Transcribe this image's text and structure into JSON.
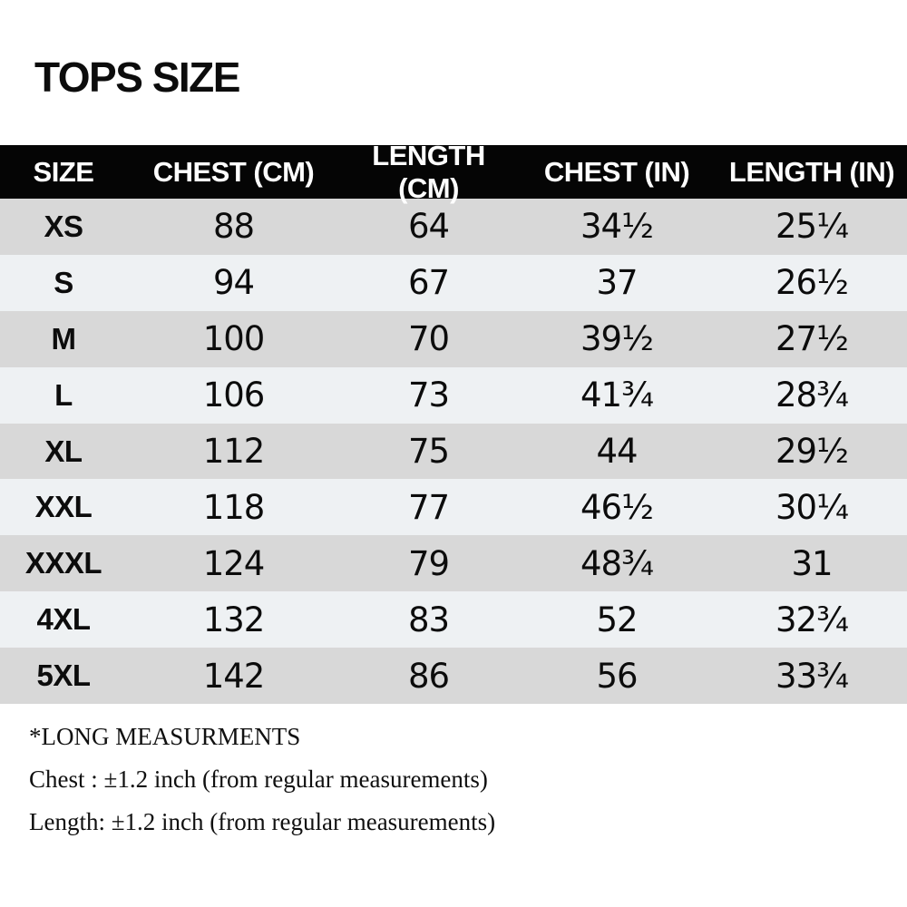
{
  "chart_data": {
    "type": "table",
    "title": "TOPS SIZE",
    "columns": [
      "SIZE",
      "CHEST (CM)",
      "LENGTH (CM)",
      "CHEST (IN)",
      "LENGTH (IN)"
    ],
    "rows": [
      [
        "XS",
        "88",
        "64",
        "34½",
        "25¼"
      ],
      [
        "S",
        "94",
        "67",
        "37",
        "26½"
      ],
      [
        "M",
        "100",
        "70",
        "39½",
        "27½"
      ],
      [
        "L",
        "106",
        "73",
        "41¾",
        "28¾"
      ],
      [
        "XL",
        "112",
        "75",
        "44",
        "29½"
      ],
      [
        "XXL",
        "118",
        "77",
        "46½",
        "30¼"
      ],
      [
        "XXXL",
        "124",
        "79",
        "48¾",
        "31"
      ],
      [
        "4XL",
        "132",
        "83",
        "52",
        "32¾"
      ],
      [
        "5XL",
        "142",
        "86",
        "56",
        "33¾"
      ]
    ],
    "notes": [
      "*LONG MEASURMENTS",
      "Chest : ±1.2 inch (from regular measurements)",
      "Length: ±1.2 inch (from regular measurements)"
    ],
    "layout_hints": {
      "row_striping": "odd rows gray, even rows light",
      "header_position": "top"
    }
  },
  "colors": {
    "page_bg": "#ffffff",
    "header_bg": "#050505",
    "header_text": "#ffffff",
    "row_odd_bg": "#d8d8d8",
    "row_even_bg": "#eef1f3",
    "text": "#0c0c0c"
  }
}
